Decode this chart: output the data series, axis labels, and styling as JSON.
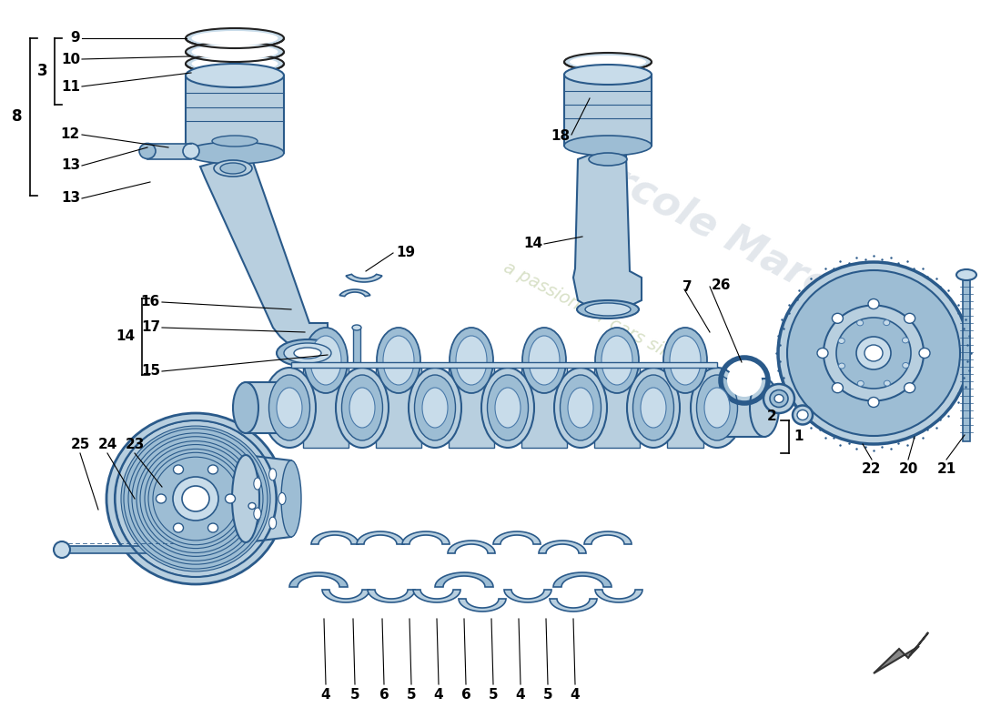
{
  "bg_color": "#ffffff",
  "fig_width": 11.0,
  "fig_height": 8.0,
  "cc": "#b8cfdf",
  "cc2": "#9dbdd4",
  "cc3": "#c8dcea",
  "cc_dark": "#7aa8c4",
  "edge": "#2a5a8a",
  "edge2": "#4a7aaa",
  "lc": "#000000",
  "fs": 11,
  "watermark_color": "#d0d8e0",
  "watermark_color2": "#c8d4b0"
}
